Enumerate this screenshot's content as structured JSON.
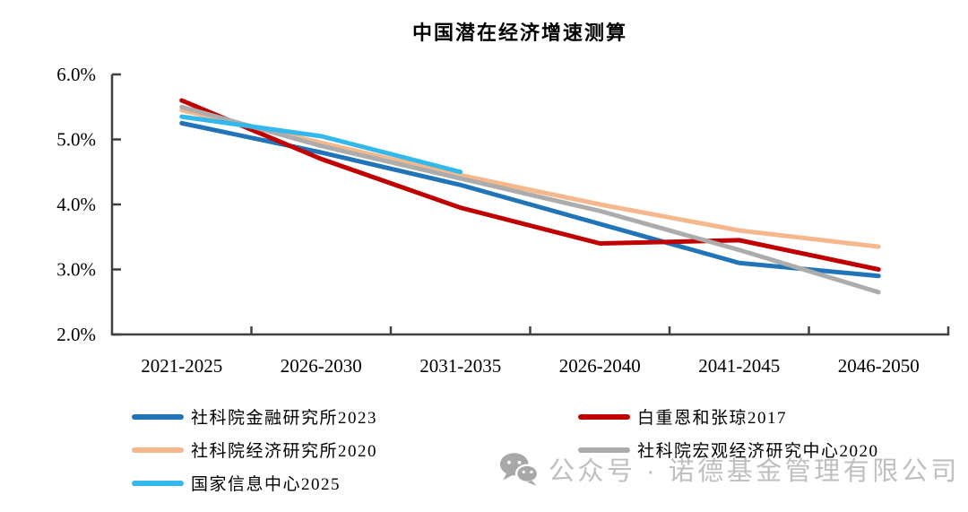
{
  "title": "中国潜在经济增速测算",
  "watermark": {
    "icon": "wechat-icon",
    "text": "公众号 · 诺德基金管理有限公司",
    "text_color": "#bfbfbf",
    "icon_color": "#a8a8a8"
  },
  "chart_data": {
    "type": "line",
    "title": "中国潜在经济增速测算",
    "categories": [
      "2021-2025",
      "2026-2030",
      "2031-2035",
      "2026-2040",
      "2041-2045",
      "2046-2050"
    ],
    "xlabel": "",
    "ylabel": "",
    "ylim": [
      2.0,
      6.0
    ],
    "y_ticks": [
      {
        "label": "6.0%",
        "value": 6.0
      },
      {
        "label": "5.0%",
        "value": 5.0
      },
      {
        "label": "4.0%",
        "value": 4.0
      },
      {
        "label": "3.0%",
        "value": 3.0
      },
      {
        "label": "2.0%",
        "value": 2.0
      }
    ],
    "grid": false,
    "legend_position": "bottom",
    "axis_color": "#404040",
    "series": [
      {
        "name": "社科院金融研究所2023",
        "color": "#2074B7",
        "values": [
          5.25,
          4.8,
          4.3,
          3.7,
          3.1,
          2.9
        ]
      },
      {
        "name": "白重恩和张琼2017",
        "color": "#C00000",
        "values": [
          5.6,
          4.7,
          3.95,
          3.4,
          3.45,
          3.0
        ]
      },
      {
        "name": "社科院经济研究所2020",
        "color": "#F5B88C",
        "values": [
          5.45,
          4.95,
          4.45,
          4.0,
          3.6,
          3.35
        ]
      },
      {
        "name": "社科院宏观经济研究中心2020",
        "color": "#ACACAC",
        "values": [
          5.5,
          4.9,
          4.4,
          3.9,
          3.3,
          2.65
        ]
      },
      {
        "name": "国家信息中心2025",
        "color": "#33B8EC",
        "values": [
          5.35,
          5.05,
          4.5,
          null,
          null,
          null
        ]
      }
    ],
    "legend_columns": {
      "left": [
        0,
        2,
        4
      ],
      "right": [
        1,
        3
      ]
    }
  }
}
